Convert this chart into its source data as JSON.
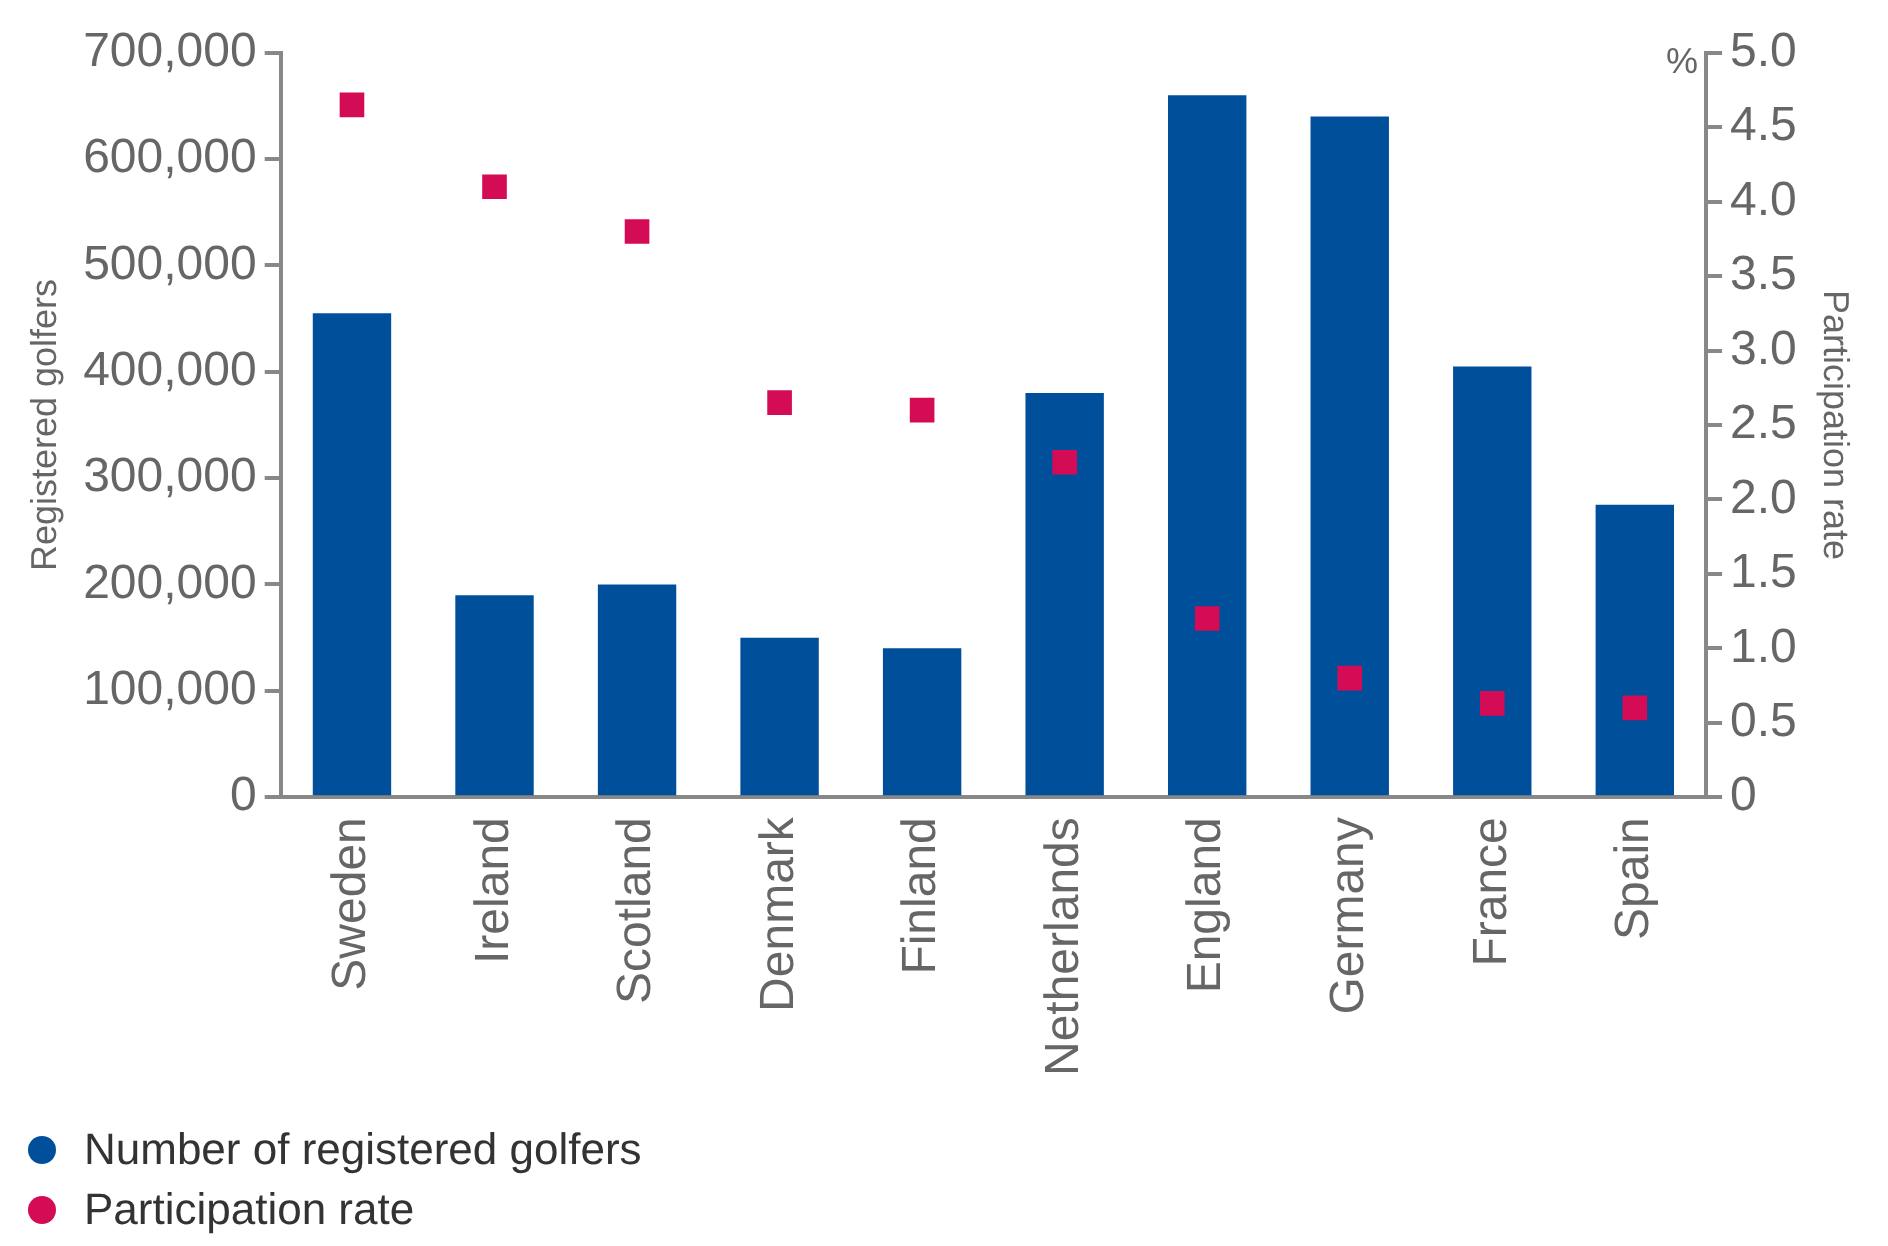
{
  "chart_data": {
    "type": "bar",
    "ylabel": "Registered golfers",
    "y2label": "Participation rate",
    "annotations": [
      "%"
    ],
    "categories": [
      "Sweden",
      "Ireland",
      "Scotland",
      "Denmark",
      "Finland",
      "Netherlands",
      "England",
      "Germany",
      "France",
      "Spain"
    ],
    "series": [
      {
        "name": "Number of registered golfers",
        "color": "#004f9a",
        "values": [
          455000,
          190000,
          200000,
          150000,
          140000,
          380000,
          660000,
          640000,
          405000,
          275000
        ]
      },
      {
        "name": "Participation rate",
        "type": "scatter",
        "axis": "y2",
        "color": "#d40b55",
        "x": [
          "Sweden",
          "Ireland",
          "Scotland",
          "Denmark",
          "Finland",
          "Netherlands",
          "England",
          "Germany",
          "France",
          "Spain"
        ],
        "values": [
          4.65,
          4.1,
          3.8,
          2.65,
          2.6,
          2.25,
          1.2,
          0.8,
          0.63,
          0.6
        ]
      }
    ],
    "ylim": [
      0,
      700000
    ],
    "yticks": [
      0,
      {
        "value": 100000,
        "label": "100,000"
      },
      {
        "value": 200000,
        "label": "200,000"
      },
      {
        "value": 300000,
        "label": "300,000"
      },
      {
        "value": 400000,
        "label": "400,000"
      },
      {
        "value": 500000,
        "label": "500,000"
      },
      {
        "value": 600000,
        "label": "600,000"
      },
      {
        "value": 700000,
        "label": "700,000"
      }
    ],
    "y2lim": [
      0,
      5
    ],
    "y2ticks": [
      0,
      0.5,
      {
        "value": 1,
        "label": "1.0"
      },
      1.5,
      {
        "value": 2,
        "label": "2.0"
      },
      2.5,
      {
        "value": 3,
        "label": "3.0"
      },
      3.5,
      {
        "value": 4,
        "label": "4.0"
      },
      4.5,
      {
        "value": 5,
        "label": "5.0"
      }
    ],
    "grid": false,
    "legend": "bottom left",
    "marker": "square"
  }
}
